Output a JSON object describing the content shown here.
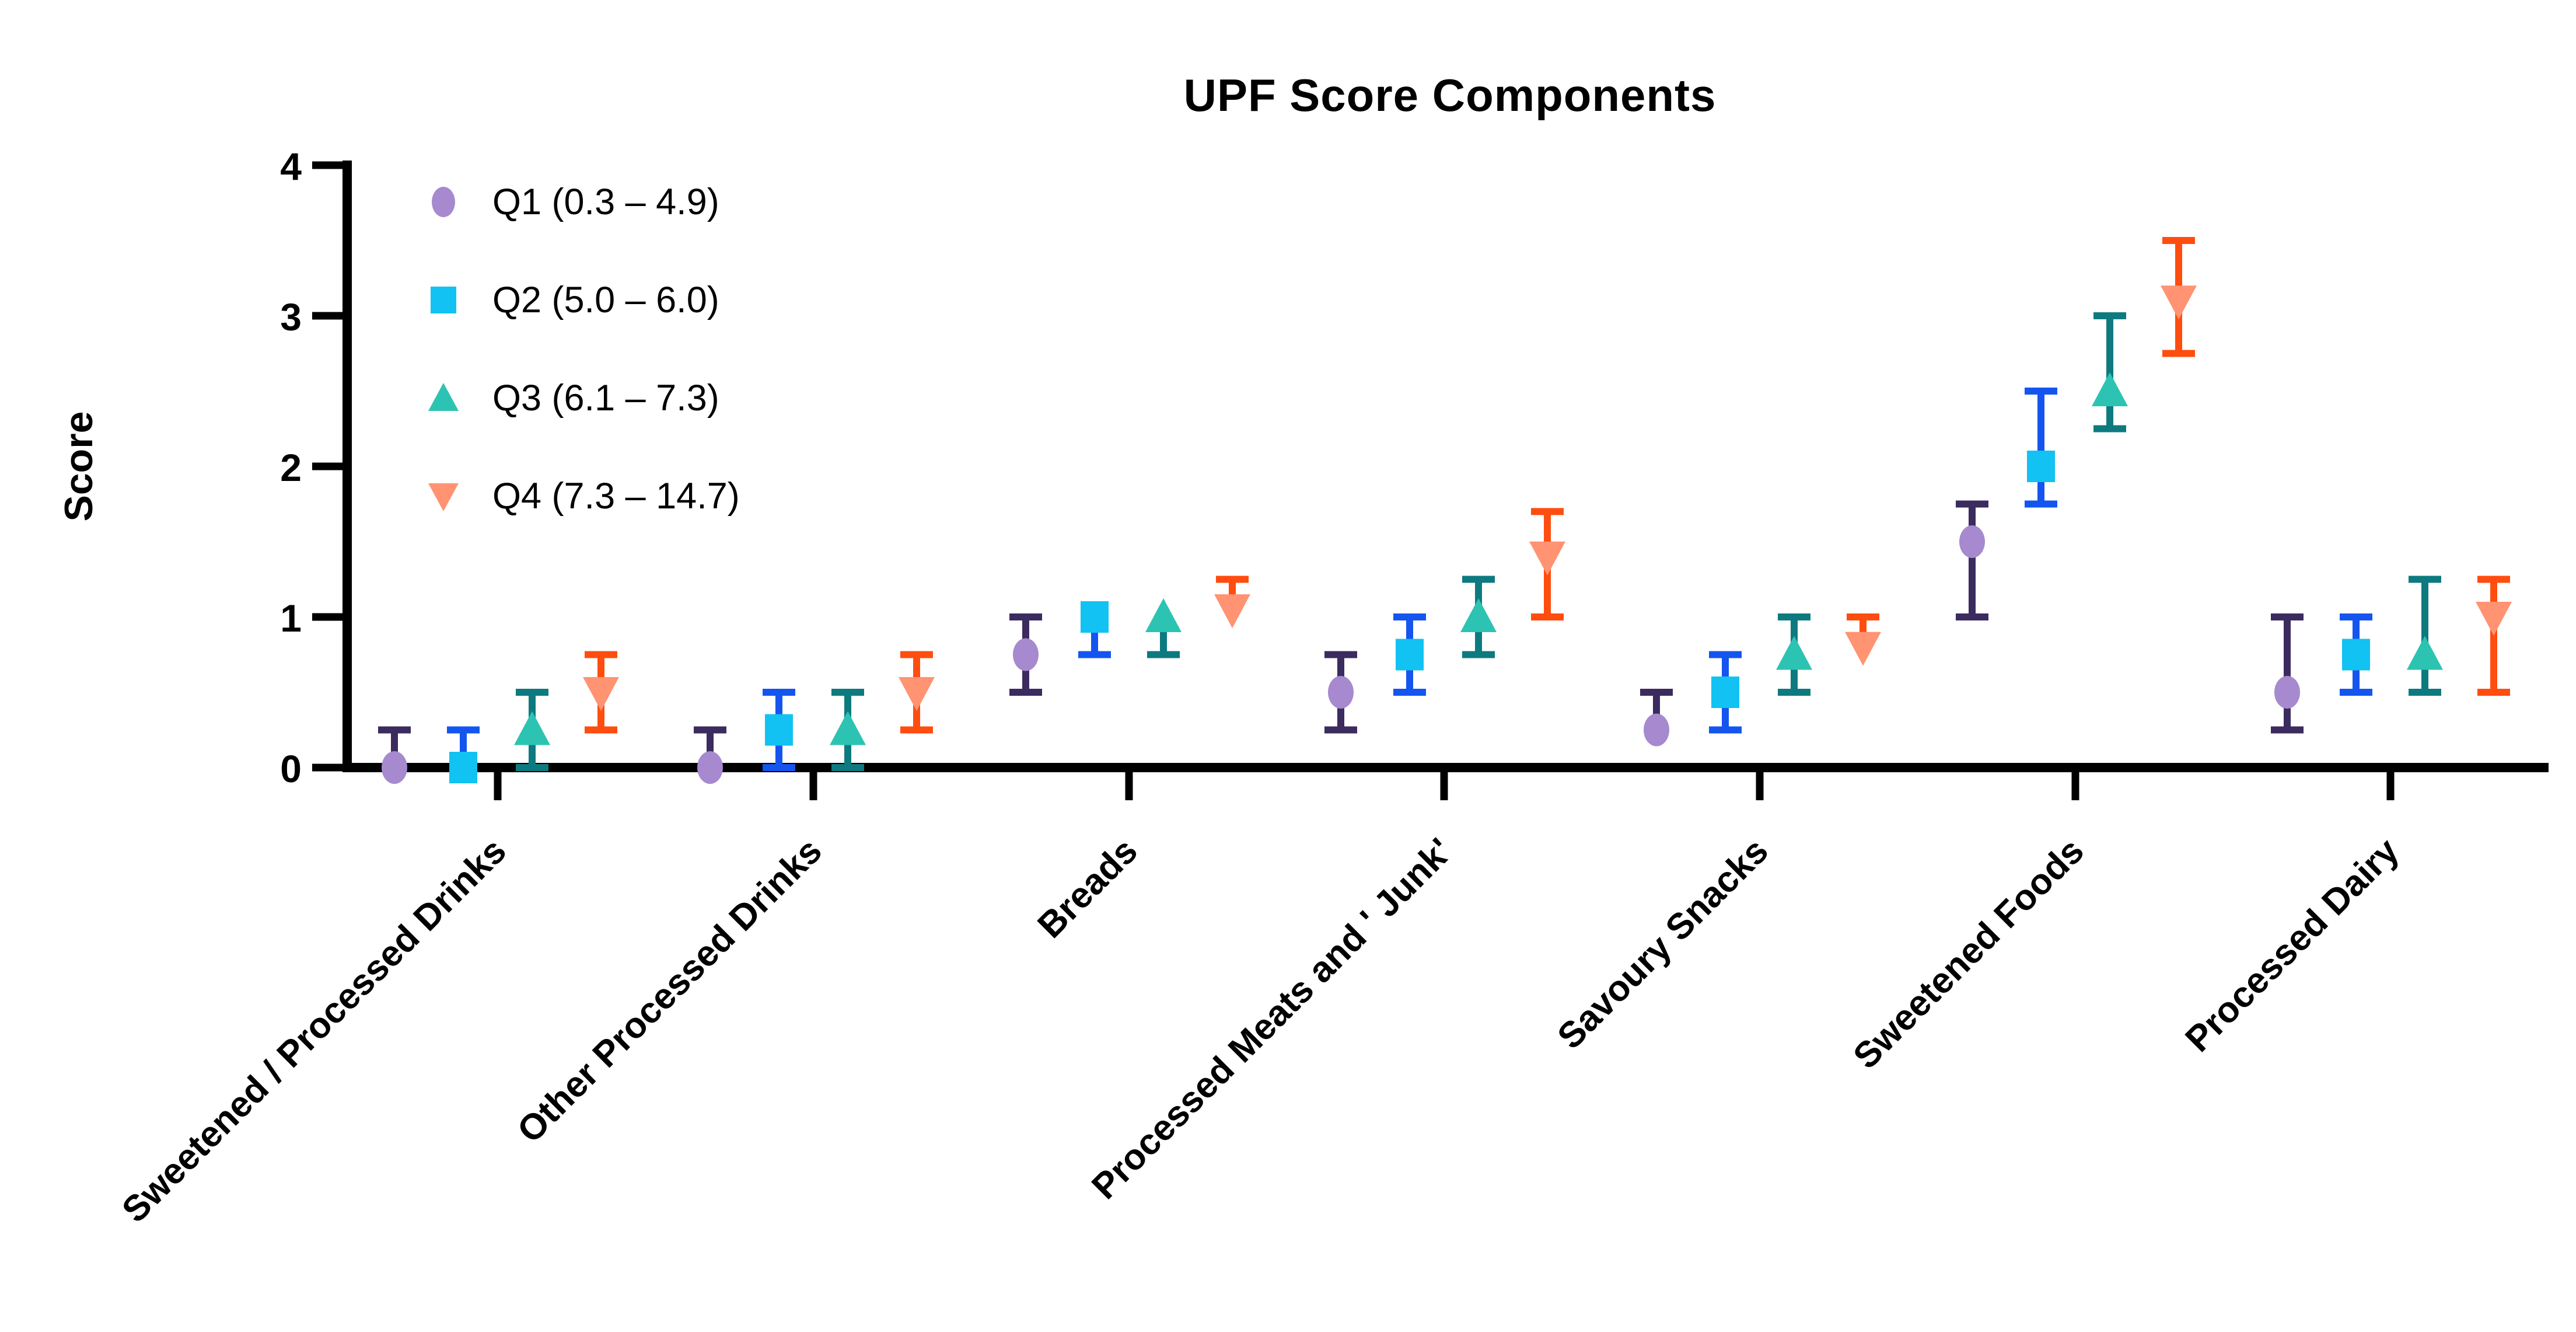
{
  "page": {
    "background": "#ffffff"
  },
  "chart_data": {
    "type": "scatter",
    "title": "UPF Score Components",
    "ylabel": "Score",
    "ylim": [
      0,
      4
    ],
    "yticks": [
      0,
      1,
      2,
      3,
      4
    ],
    "grid": false,
    "legend_position": "top-left-inside",
    "categories": [
      "Sweetened / Processed Drinks",
      "Other Processed Drinks",
      "Breads",
      "Processed Meats and ' Junk'",
      "Savoury Snacks",
      "Sweetened Foods",
      "Processed Dairy"
    ],
    "series": [
      {
        "key": "q1",
        "label": "Q1 (0.3 – 4.9)",
        "marker": "circle",
        "fill": "#A689CE",
        "line": "#3B2B5F",
        "median": [
          0,
          0,
          0.75,
          0.5,
          0.25,
          1.5,
          0.5
        ],
        "lo": [
          0,
          0,
          0.5,
          0.25,
          0.25,
          1.0,
          0.25
        ],
        "hi": [
          0.25,
          0.25,
          1.0,
          0.75,
          0.5,
          1.75,
          1.0
        ]
      },
      {
        "key": "q2",
        "label": "Q2 (5.0 – 6.0)",
        "marker": "square",
        "fill": "#12C2F2",
        "line": "#1455F0",
        "median": [
          0,
          0.25,
          1.0,
          0.75,
          0.5,
          2.0,
          0.75
        ],
        "lo": [
          0,
          0,
          0.75,
          0.5,
          0.25,
          1.75,
          0.5
        ],
        "hi": [
          0.25,
          0.5,
          1.0,
          1.0,
          0.75,
          2.5,
          1.0
        ]
      },
      {
        "key": "q3",
        "label": "Q3 (6.1 – 7.3)",
        "marker": "triangle-up",
        "fill": "#2DC3B3",
        "line": "#0D7A80",
        "median": [
          0.25,
          0.25,
          1.0,
          1.0,
          0.75,
          2.5,
          0.75
        ],
        "lo": [
          0,
          0,
          0.75,
          0.75,
          0.5,
          2.25,
          0.5
        ],
        "hi": [
          0.5,
          0.5,
          1.0,
          1.25,
          1.0,
          3.0,
          1.25
        ]
      },
      {
        "key": "q4",
        "label": "Q4 (7.3 – 14.7)",
        "marker": "triangle-down",
        "fill": "#FF9372",
        "line": "#FF4D0F",
        "median": [
          0.5,
          0.5,
          1.05,
          1.4,
          0.8,
          3.1,
          1.0
        ],
        "lo": [
          0.25,
          0.25,
          1.0,
          1.0,
          0.75,
          2.75,
          0.5
        ],
        "hi": [
          0.75,
          0.75,
          1.25,
          1.7,
          1.0,
          3.5,
          1.25
        ]
      }
    ]
  }
}
